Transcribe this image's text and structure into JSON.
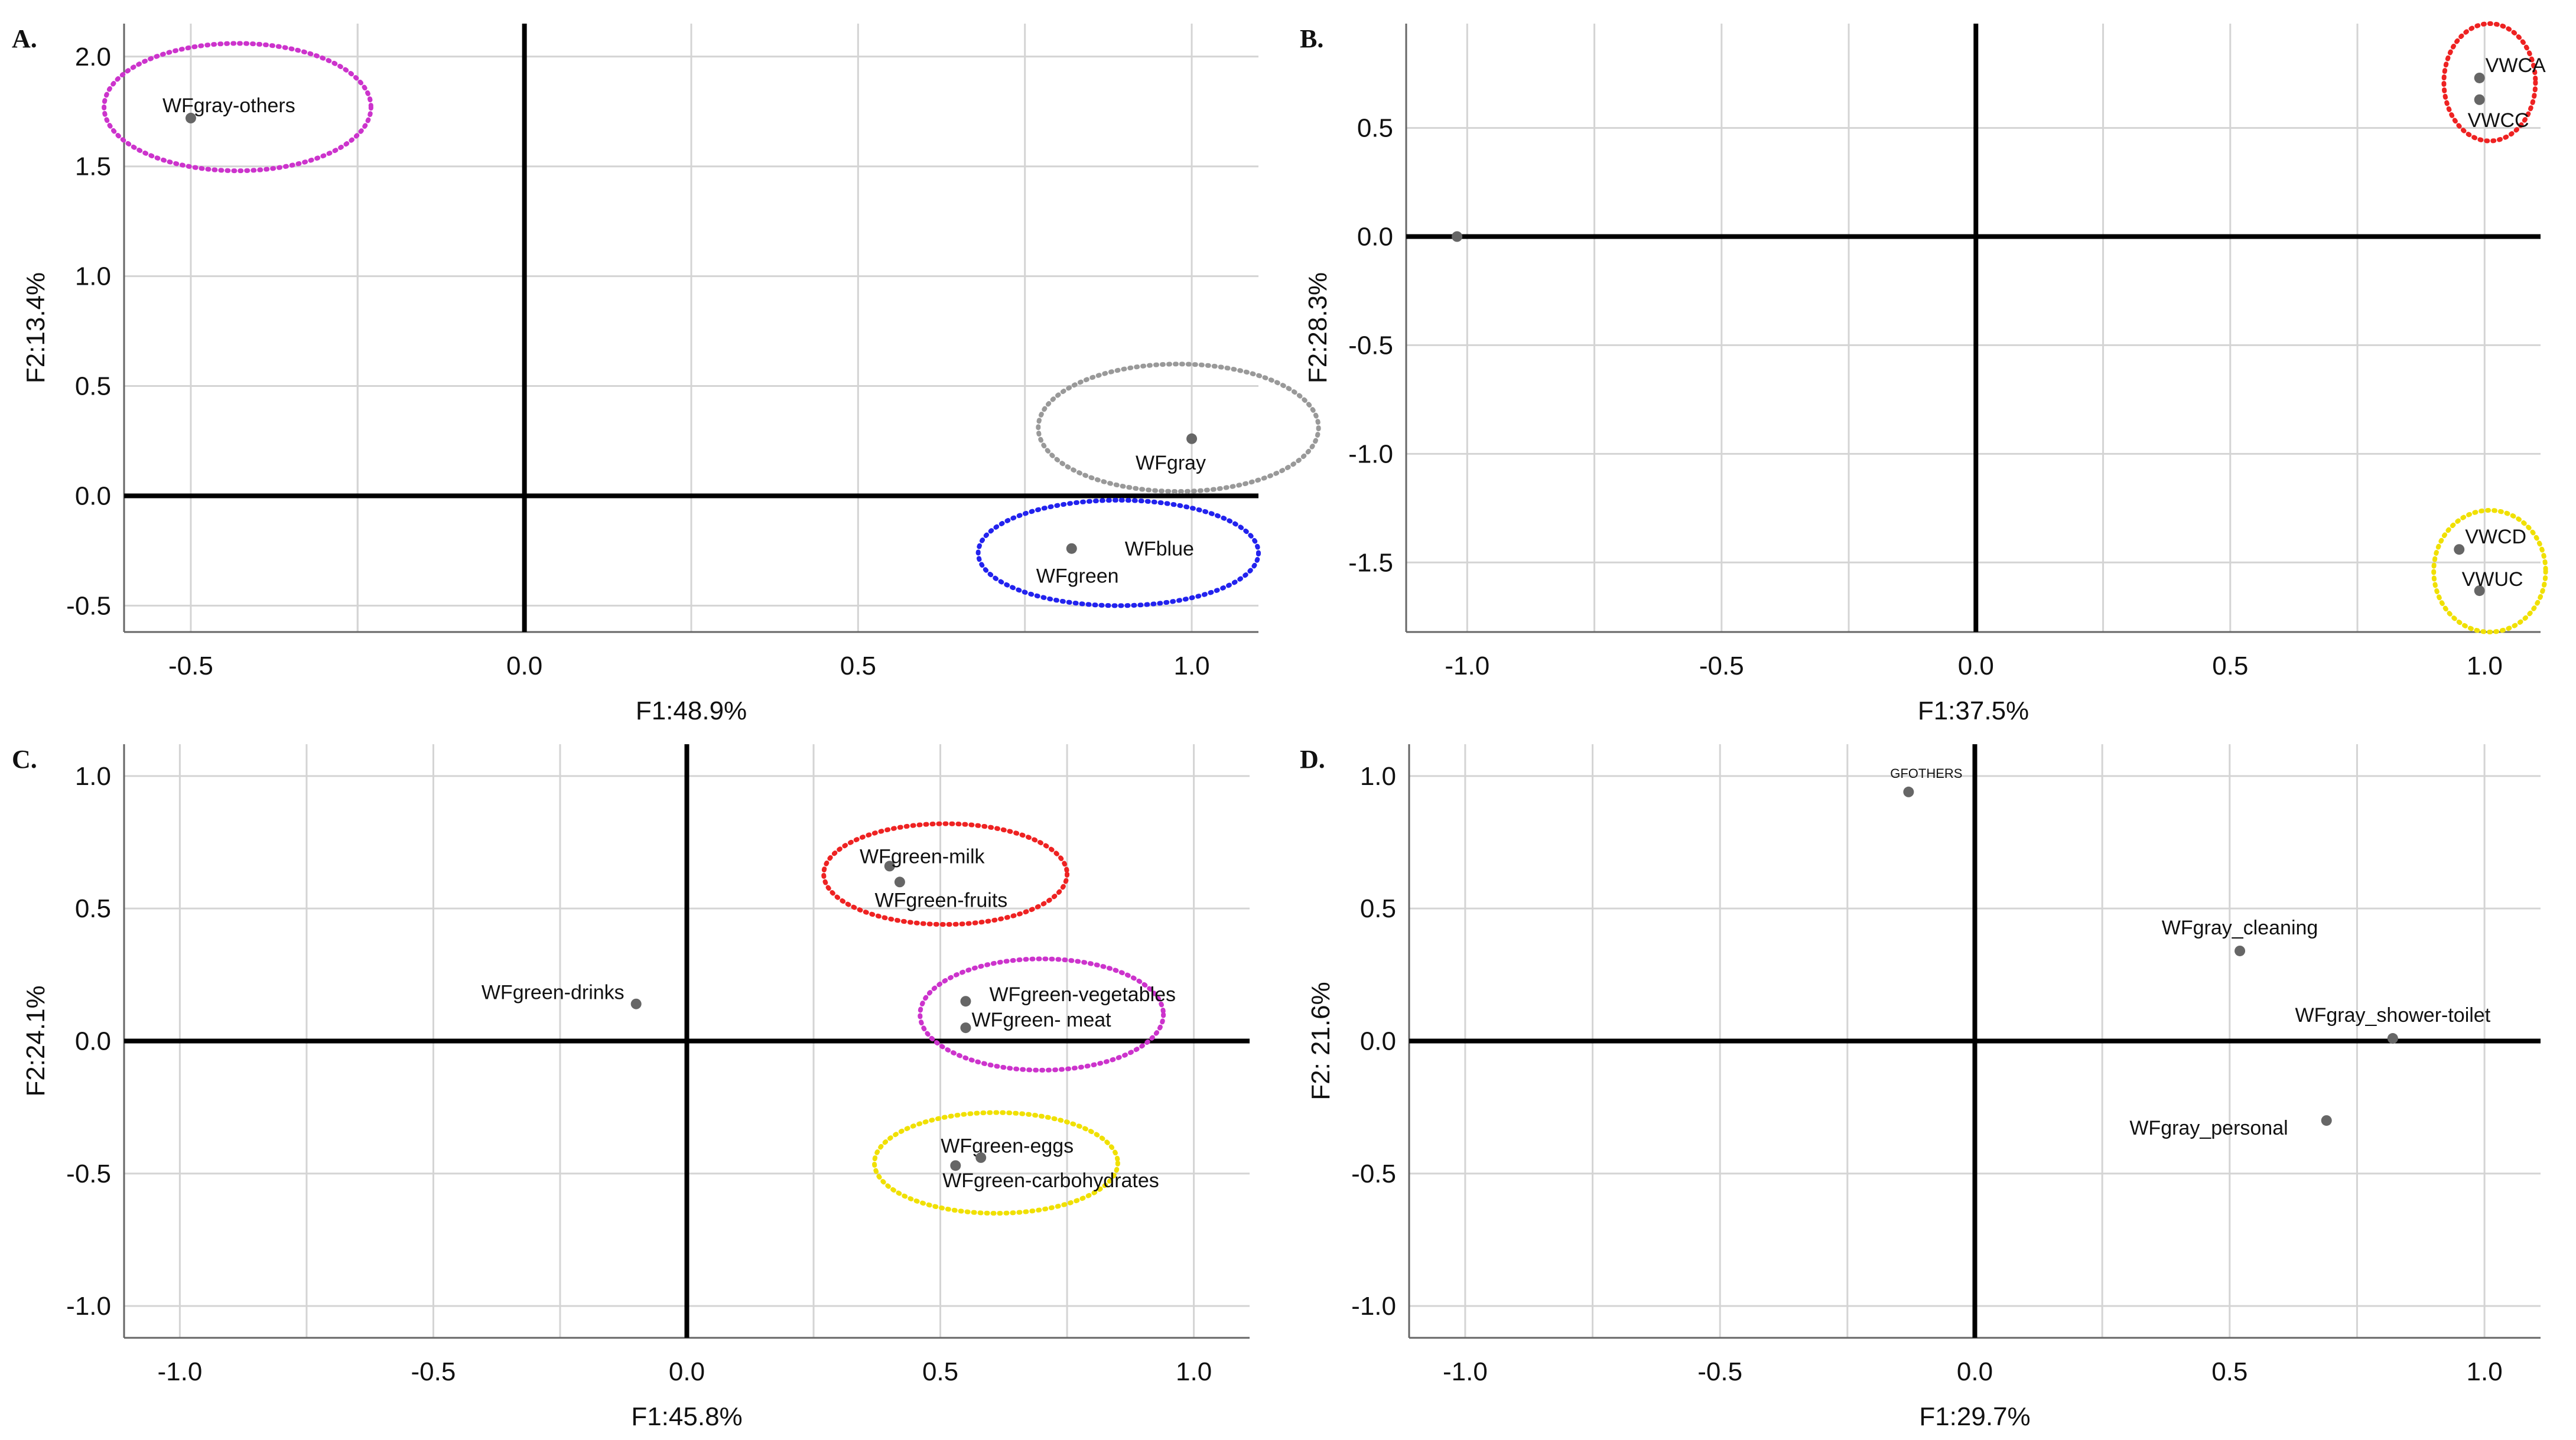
{
  "figure": {
    "panels": [
      "A",
      "B",
      "C",
      "D"
    ]
  },
  "chart_data": [
    {
      "type": "scatter",
      "panel_label": "A.",
      "xlabel": "F1:48.9%",
      "ylabel": "F2:13.4%",
      "xlim": [
        -0.6,
        1.1
      ],
      "ylim": [
        -0.62,
        2.15
      ],
      "xticks": [
        -0.5,
        0.0,
        0.5,
        1.0
      ],
      "xtick_labels": [
        "-0.5",
        "0.0",
        "0.5",
        "1.0"
      ],
      "yticks": [
        -0.5,
        0.0,
        0.5,
        1.0,
        1.5,
        2.0
      ],
      "ytick_labels": [
        "-0.5",
        "0.0",
        "0.5",
        "1.0",
        "1.5",
        "2.0"
      ],
      "grid": true,
      "points": [
        {
          "x": -0.5,
          "y": 1.72,
          "label": "WFgray-others",
          "anchor": "right"
        },
        {
          "x": 1.0,
          "y": 0.26,
          "label": "WFgray",
          "anchor": "below-left"
        },
        {
          "x": 0.82,
          "y": -0.24,
          "label": "WFgreen",
          "anchor": "below"
        },
        {
          "x": 0.82,
          "y": -0.24,
          "label": "WFblue",
          "anchor": "right-far"
        }
      ],
      "groups": [
        {
          "color": "#cc33cc",
          "cx": -0.43,
          "cy": 1.77,
          "rx": 0.2,
          "ry": 0.29
        },
        {
          "color": "#999999",
          "cx": 0.98,
          "cy": 0.31,
          "rx": 0.21,
          "ry": 0.29
        },
        {
          "color": "#2222ee",
          "cx": 0.89,
          "cy": -0.26,
          "rx": 0.21,
          "ry": 0.24
        }
      ]
    },
    {
      "type": "scatter",
      "panel_label": "B.",
      "xlabel": "F1:37.5%",
      "ylabel": "F2:28.3%",
      "xlim": [
        -1.12,
        1.11
      ],
      "ylim": [
        -1.82,
        0.98
      ],
      "xticks": [
        -1.0,
        -0.5,
        0.0,
        0.5,
        1.0
      ],
      "xtick_labels": [
        "-1.0",
        "-0.5",
        "0.0",
        "0.5",
        "1.0"
      ],
      "yticks": [
        -1.5,
        -1.0,
        -0.5,
        0.0,
        0.5
      ],
      "ytick_labels": [
        "-1.5",
        "-1.0",
        "-0.5",
        "0.0",
        "0.5"
      ],
      "grid": true,
      "points": [
        {
          "x": -1.02,
          "y": 0.0,
          "label": "",
          "anchor": "none"
        },
        {
          "x": 0.99,
          "y": 0.73,
          "label": "VWCA",
          "anchor": "right"
        },
        {
          "x": 0.99,
          "y": 0.63,
          "label": "VWCC",
          "anchor": "right-below"
        },
        {
          "x": 0.95,
          "y": -1.44,
          "label": "VWCD",
          "anchor": "right"
        },
        {
          "x": 0.99,
          "y": -1.63,
          "label": "VWUC",
          "anchor": "right-above"
        }
      ],
      "groups": [
        {
          "color": "#ee2222",
          "cx": 1.01,
          "cy": 0.71,
          "rx": 0.09,
          "ry": 0.27
        },
        {
          "color": "#f0e000",
          "cx": 1.01,
          "cy": -1.54,
          "rx": 0.11,
          "ry": 0.28
        }
      ]
    },
    {
      "type": "scatter",
      "panel_label": "C.",
      "xlabel": "F1:45.8%",
      "ylabel": "F2:24.1%",
      "xlim": [
        -1.11,
        1.11
      ],
      "ylim": [
        -1.12,
        1.12
      ],
      "xticks": [
        -1.0,
        -0.5,
        0.0,
        0.5,
        1.0
      ],
      "xtick_labels": [
        "-1.0",
        "-0.5",
        "0.0",
        "0.5",
        "1.0"
      ],
      "yticks": [
        -1.0,
        -0.5,
        0.0,
        0.5,
        1.0
      ],
      "ytick_labels": [
        "-1.0",
        "-0.5",
        "0.0",
        "0.5",
        "1.0"
      ],
      "grid": true,
      "points": [
        {
          "x": 0.4,
          "y": 0.66,
          "label": "WFgreen-milk",
          "anchor": "center-above"
        },
        {
          "x": 0.42,
          "y": 0.6,
          "label": "WFgreen-fruits",
          "anchor": "center-below"
        },
        {
          "x": -0.1,
          "y": 0.14,
          "label": "WFgreen-drinks",
          "anchor": "left"
        },
        {
          "x": 0.55,
          "y": 0.15,
          "label": "WFgreen-vegetables",
          "anchor": "right"
        },
        {
          "x": 0.55,
          "y": 0.05,
          "label": "WFgreen- meat",
          "anchor": "right-below"
        },
        {
          "x": 0.53,
          "y": -0.47,
          "label": "WFgreen-eggs",
          "anchor": "right-above"
        },
        {
          "x": 0.58,
          "y": -0.44,
          "label": "WFgreen-carbohydrates",
          "anchor": "below"
        }
      ],
      "groups": [
        {
          "color": "#ee2222",
          "cx": 0.51,
          "cy": 0.63,
          "rx": 0.24,
          "ry": 0.19
        },
        {
          "color": "#cc33cc",
          "cx": 0.7,
          "cy": 0.1,
          "rx": 0.24,
          "ry": 0.21
        },
        {
          "color": "#f0e000",
          "cx": 0.61,
          "cy": -0.46,
          "rx": 0.24,
          "ry": 0.19
        }
      ]
    },
    {
      "type": "scatter",
      "panel_label": "D.",
      "xlabel": "F1:29.7%",
      "ylabel": "F2: 21.6%",
      "xlim": [
        -1.11,
        1.11
      ],
      "ylim": [
        -1.12,
        1.12
      ],
      "xticks": [
        -1.0,
        -0.5,
        0.0,
        0.5,
        1.0
      ],
      "xtick_labels": [
        "-1.0",
        "-0.5",
        "0.0",
        "0.5",
        "1.0"
      ],
      "yticks": [
        -1.0,
        -0.5,
        0.0,
        0.5,
        1.0
      ],
      "ytick_labels": [
        "-1.0",
        "-0.5",
        "0.0",
        "0.5",
        "1.0"
      ],
      "grid": true,
      "points": [
        {
          "x": -0.13,
          "y": 0.94,
          "label": "GFOTHERS",
          "anchor": "small-above"
        },
        {
          "x": 0.52,
          "y": 0.34,
          "label": "WFgray_cleaning",
          "anchor": "center-above"
        },
        {
          "x": 0.82,
          "y": 0.01,
          "label": "WFgray_shower-toilet",
          "anchor": "center-above"
        },
        {
          "x": 0.69,
          "y": -0.3,
          "label": "WFgray_personal",
          "anchor": "left"
        }
      ],
      "groups": []
    }
  ]
}
